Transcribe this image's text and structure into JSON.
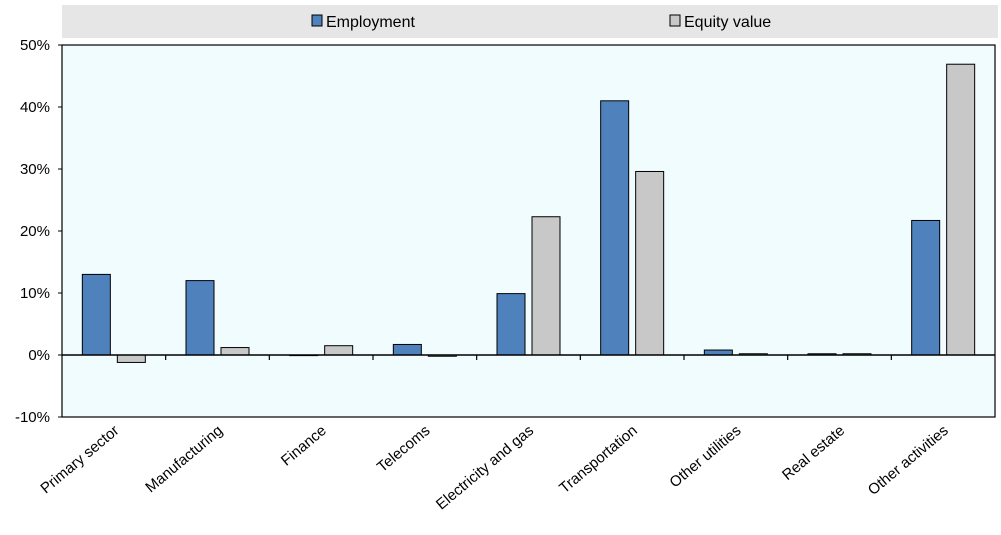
{
  "chart_data": {
    "type": "bar",
    "categories": [
      "Primary sector",
      "Manufacturing",
      "Finance",
      "Telecoms",
      "Electricity and gas",
      "Transportation",
      "Other utilities",
      "Real estate",
      "Other activities"
    ],
    "series": [
      {
        "name": "Employment",
        "color": "#4f81bd",
        "values": [
          13.0,
          12.0,
          0.0,
          1.7,
          9.9,
          41.0,
          0.8,
          0.2,
          21.7
        ]
      },
      {
        "name": "Equity value",
        "color": "#c8c8c8",
        "values": [
          -1.2,
          1.2,
          1.5,
          -0.2,
          22.3,
          29.6,
          0.2,
          0.2,
          46.9
        ]
      }
    ],
    "yticks": [
      "-10%",
      "0%",
      "10%",
      "20%",
      "30%",
      "40%",
      "50%"
    ],
    "ylim": [
      -10,
      50
    ],
    "y_unit": "%",
    "legend_position": "top",
    "plot_background": "#f0fcfd",
    "legend_background": "#e6e6e6"
  }
}
